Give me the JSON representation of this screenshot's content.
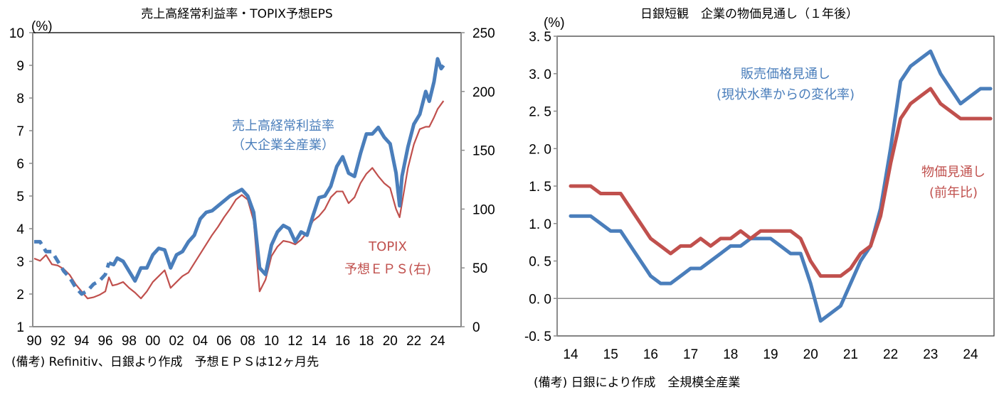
{
  "chart_data": [
    {
      "type": "line",
      "title": "売上高経常利益率・TOPIX予想EPS",
      "left_unit_label": "(%)",
      "xlabel": "",
      "ylabel_left": "(%)",
      "ylabel_right": "",
      "ylim_left": [
        1,
        10
      ],
      "ylim_right": [
        0,
        250
      ],
      "y_ticks_left": [
        "1",
        "2",
        "3",
        "4",
        "5",
        "6",
        "7",
        "8",
        "9",
        "10"
      ],
      "y_ticks_right": [
        "0",
        "50",
        "100",
        "150",
        "200",
        "250"
      ],
      "x_tick_labels": [
        "90",
        "92",
        "94",
        "96",
        "98",
        "00",
        "02",
        "04",
        "06",
        "08",
        "10",
        "12",
        "14",
        "16",
        "18",
        "20",
        "22",
        "24"
      ],
      "xlim": [
        1990,
        2024.9
      ],
      "grid": false,
      "note": "(備考) Refinitiv、日銀より作成　予想ＥＰＳは12ヶ月先",
      "series": [
        {
          "name": "売上高経常利益率(大企業全産業)",
          "label_line1": "売上高経常利益率",
          "label_line2": "（大企業全産業）",
          "axis": "left",
          "color": "#4a7ebb",
          "x": [
            1990,
            1990.5,
            1991,
            1991.5,
            1992,
            1992.5,
            1993,
            1993.5,
            1994,
            1994.5,
            1995,
            1995.5,
            1996,
            1996.3,
            1996.7,
            1997,
            1997.5,
            1998,
            1998.5,
            1999,
            1999.5,
            2000,
            2000.5,
            2001,
            2001.5,
            2002,
            2002.5,
            2003,
            2003.5,
            2004,
            2004.5,
            2005,
            2005.5,
            2006,
            2006.5,
            2007,
            2007.5,
            2008,
            2008.5,
            2009,
            2009.5,
            2010,
            2010.5,
            2011,
            2011.5,
            2012,
            2012.5,
            2013,
            2013.5,
            2014,
            2014.5,
            2015,
            2015.5,
            2016,
            2016.5,
            2017,
            2017.5,
            2018,
            2018.5,
            2019,
            2019.5,
            2020,
            2020.5,
            2020.8,
            2021,
            2021.5,
            2022,
            2022.5,
            2023,
            2023.3,
            2023.7,
            2024,
            2024.3,
            2024.5
          ],
          "values": [
            3.6,
            3.6,
            3.3,
            3.3,
            3.0,
            2.7,
            2.5,
            2.2,
            2.0,
            2.1,
            2.3,
            2.4,
            2.6,
            2.95,
            2.9,
            3.1,
            3.0,
            2.7,
            2.4,
            2.8,
            2.8,
            3.2,
            3.4,
            3.35,
            2.8,
            3.2,
            3.3,
            3.6,
            3.8,
            4.3,
            4.5,
            4.55,
            4.7,
            4.85,
            5.0,
            5.1,
            5.2,
            5.0,
            4.5,
            2.8,
            2.6,
            3.5,
            3.9,
            4.1,
            4.0,
            3.6,
            3.9,
            3.8,
            4.4,
            4.95,
            5.0,
            5.3,
            5.9,
            6.2,
            5.7,
            5.6,
            6.3,
            6.9,
            6.9,
            7.1,
            6.8,
            6.6,
            5.7,
            4.7,
            5.6,
            6.5,
            7.2,
            7.5,
            8.2,
            7.9,
            8.5,
            9.2,
            8.9,
            9.0
          ]
        },
        {
          "name": "TOPIX予想EPS(右)",
          "label_line1": "TOPIX",
          "label_line2": "予想ＥＰＳ(右)",
          "axis": "right",
          "color": "#c0504d",
          "x": [
            1990,
            1990.5,
            1991,
            1991.5,
            1992,
            1992.5,
            1993,
            1993.5,
            1994,
            1994.5,
            1995,
            1995.5,
            1996,
            1996.3,
            1996.6,
            1997,
            1997.5,
            1998,
            1998.5,
            1999,
            1999.5,
            2000,
            2000.5,
            2001,
            2001.5,
            2002,
            2002.5,
            2003,
            2003.5,
            2004,
            2004.5,
            2005,
            2005.5,
            2006,
            2006.5,
            2007,
            2007.5,
            2008,
            2008.5,
            2009,
            2009.5,
            2010,
            2010.5,
            2011,
            2011.5,
            2012,
            2012.5,
            2013,
            2013.5,
            2014,
            2014.5,
            2015,
            2015.5,
            2016,
            2016.5,
            2017,
            2017.5,
            2018,
            2018.5,
            2019,
            2019.5,
            2020,
            2020.5,
            2020.8,
            2021,
            2021.5,
            2022,
            2022.5,
            2023,
            2023.3,
            2023.7,
            2024,
            2024.5
          ],
          "values": [
            58,
            56,
            61,
            53,
            52,
            49,
            44,
            36,
            30,
            24,
            25,
            27,
            30,
            42,
            35,
            36,
            38,
            33,
            29,
            24,
            30,
            38,
            43,
            48,
            33,
            38,
            43,
            46,
            54,
            62,
            70,
            78,
            85,
            93,
            100,
            108,
            112,
            108,
            90,
            30,
            40,
            60,
            68,
            73,
            72,
            70,
            74,
            80,
            90,
            94,
            100,
            110,
            115,
            115,
            105,
            110,
            122,
            130,
            135,
            128,
            122,
            118,
            100,
            93,
            105,
            135,
            155,
            168,
            170,
            170,
            178,
            185,
            192
          ]
        }
      ]
    },
    {
      "type": "line",
      "title": "日銀短観　企業の物価見通し（１年後）",
      "y_unit_label": "(%)",
      "xlabel": "",
      "ylabel": "(%)",
      "ylim": [
        -0.5,
        3.5
      ],
      "y_ticks": [
        "-0.5",
        "0.0",
        "0.5",
        "1.0",
        "1.5",
        "2.0",
        "2.5",
        "3.0",
        "3.5"
      ],
      "x_tick_labels": [
        "14",
        "15",
        "16",
        "17",
        "18",
        "19",
        "20",
        "21",
        "22",
        "23",
        "24"
      ],
      "x_unit": "quarter index from 2014Q1",
      "grid": false,
      "zero_line": true,
      "note": "(備考) 日銀により作成　全規模全産業",
      "series": [
        {
          "name": "販売価格見通し(現状水準からの変化率)",
          "label_line1": "販売価格見通し",
          "label_line2": "(現状水準からの変化率)",
          "color": "#4a7ebb",
          "values": [
            1.1,
            1.1,
            1.1,
            1.0,
            0.9,
            0.9,
            0.7,
            0.5,
            0.3,
            0.2,
            0.2,
            0.3,
            0.4,
            0.4,
            0.5,
            0.6,
            0.7,
            0.7,
            0.8,
            0.8,
            0.8,
            0.7,
            0.6,
            0.6,
            0.2,
            -0.3,
            -0.2,
            -0.1,
            0.2,
            0.5,
            0.7,
            1.2,
            2.0,
            2.9,
            3.1,
            3.2,
            3.3,
            3.0,
            2.8,
            2.6,
            2.7,
            2.8,
            2.8
          ]
        },
        {
          "name": "物価見通し(前年比)",
          "label_line1": "物価見通し",
          "label_line2": "(前年比)",
          "color": "#c0504d",
          "values": [
            1.5,
            1.5,
            1.5,
            1.4,
            1.4,
            1.4,
            1.2,
            1.0,
            0.8,
            0.7,
            0.6,
            0.7,
            0.7,
            0.8,
            0.7,
            0.8,
            0.8,
            0.9,
            0.8,
            0.9,
            0.9,
            0.9,
            0.9,
            0.8,
            0.5,
            0.3,
            0.3,
            0.3,
            0.4,
            0.6,
            0.7,
            1.1,
            1.8,
            2.4,
            2.6,
            2.7,
            2.8,
            2.6,
            2.5,
            2.4,
            2.4,
            2.4,
            2.4
          ]
        }
      ]
    }
  ]
}
